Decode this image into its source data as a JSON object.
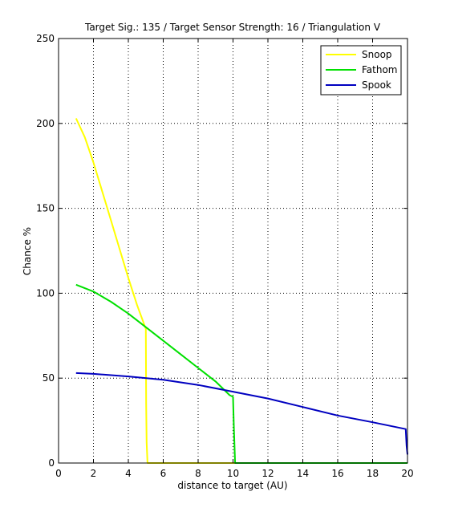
{
  "chart_data": {
    "type": "line",
    "title": "Target Sig.: 135 / Target Sensor Strength: 16 / Triangulation V",
    "xlabel": "distance to target (AU)",
    "ylabel": "Chance %",
    "xlim": [
      0,
      20
    ],
    "ylim": [
      0,
      250
    ],
    "xticks": [
      0,
      2,
      4,
      6,
      8,
      10,
      12,
      14,
      16,
      18,
      20
    ],
    "yticks": [
      0,
      50,
      100,
      150,
      200,
      250
    ],
    "grid": true,
    "legend_position": "top-right",
    "series": [
      {
        "name": "Snoop",
        "color": "#ffff00",
        "points": [
          [
            1,
            203
          ],
          [
            1.5,
            192
          ],
          [
            2,
            177
          ],
          [
            2.5,
            160
          ],
          [
            3,
            143
          ],
          [
            3.5,
            126
          ],
          [
            4,
            109
          ],
          [
            4.5,
            93
          ],
          [
            5,
            79
          ],
          [
            5.02,
            35
          ],
          [
            5.05,
            12
          ],
          [
            5.1,
            0
          ],
          [
            20,
            0
          ]
        ]
      },
      {
        "name": "Fathom",
        "color": "#00e000",
        "points": [
          [
            1,
            105
          ],
          [
            2,
            101
          ],
          [
            3,
            95
          ],
          [
            4,
            88
          ],
          [
            5,
            80
          ],
          [
            6,
            72
          ],
          [
            7,
            64
          ],
          [
            8,
            56
          ],
          [
            9,
            48
          ],
          [
            9.8,
            40
          ],
          [
            10,
            39
          ],
          [
            10.05,
            20
          ],
          [
            10.12,
            0
          ],
          [
            20,
            0
          ]
        ]
      },
      {
        "name": "Spook",
        "color": "#0000c0",
        "points": [
          [
            1,
            53
          ],
          [
            2,
            52.5
          ],
          [
            4,
            51
          ],
          [
            6,
            49
          ],
          [
            8,
            46
          ],
          [
            10,
            42
          ],
          [
            12,
            38
          ],
          [
            14,
            33
          ],
          [
            16,
            28
          ],
          [
            18,
            24
          ],
          [
            19.9,
            20
          ],
          [
            19.95,
            10
          ],
          [
            20,
            5
          ]
        ]
      }
    ]
  }
}
